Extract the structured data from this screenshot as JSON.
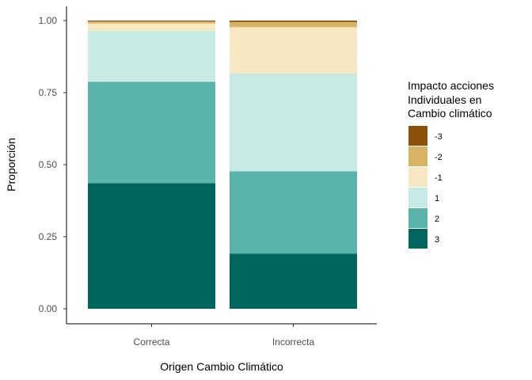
{
  "chart_data": {
    "type": "bar",
    "stacked": true,
    "categories": [
      "Correcta",
      "Incorrecta"
    ],
    "xlabel": "Origen Cambio Climático",
    "ylabel": "Proporción",
    "ylim": [
      0,
      1
    ],
    "yticks": [
      "0.00",
      "0.25",
      "0.50",
      "0.75",
      "1.00"
    ],
    "grid": false,
    "legend": {
      "title_lines": [
        "Impacto acciones",
        "Individuales en",
        "Cambio climático"
      ],
      "position": "right"
    },
    "series": [
      {
        "name": "3",
        "color": "#01665e",
        "values": [
          0.436,
          0.191
        ]
      },
      {
        "name": "2",
        "color": "#5ab4ac",
        "values": [
          0.352,
          0.286
        ]
      },
      {
        "name": "1",
        "color": "#c7eae5",
        "values": [
          0.176,
          0.339
        ]
      },
      {
        "name": "-1",
        "color": "#f6e8c3",
        "values": [
          0.026,
          0.161
        ]
      },
      {
        "name": "-2",
        "color": "#d8b365",
        "values": [
          0.007,
          0.018
        ]
      },
      {
        "name": "-3",
        "color": "#8c510a",
        "values": [
          0.003,
          0.005
        ]
      }
    ]
  }
}
